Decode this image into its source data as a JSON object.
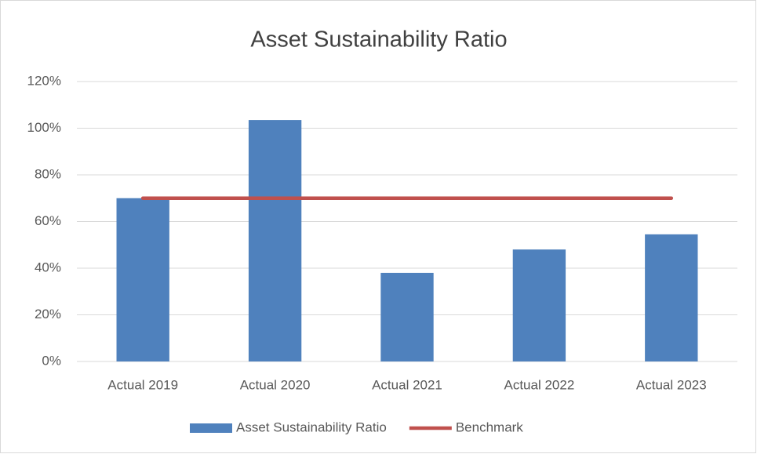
{
  "chart_data": {
    "type": "bar",
    "title": "Asset Sustainability Ratio",
    "categories": [
      "Actual 2019",
      "Actual 2020",
      "Actual 2021",
      "Actual 2022",
      "Actual 2023"
    ],
    "series": [
      {
        "name": "Asset Sustainability Ratio",
        "type": "bar",
        "color": "#4f81bd",
        "values": [
          70,
          103.5,
          38,
          48,
          54.5
        ]
      },
      {
        "name": "Benchmark",
        "type": "line",
        "color": "#c0504d",
        "values": [
          70,
          70,
          70,
          70,
          70
        ]
      }
    ],
    "ylim": [
      0,
      120
    ],
    "yticks": [
      {
        "value": 0,
        "label": "0%"
      },
      {
        "value": 20,
        "label": "20%"
      },
      {
        "value": 40,
        "label": "40%"
      },
      {
        "value": 60,
        "label": "60%"
      },
      {
        "value": 80,
        "label": "80%"
      },
      {
        "value": 100,
        "label": "100%"
      },
      {
        "value": 120,
        "label": "120%"
      }
    ],
    "grid": true,
    "legend": "bottom"
  }
}
